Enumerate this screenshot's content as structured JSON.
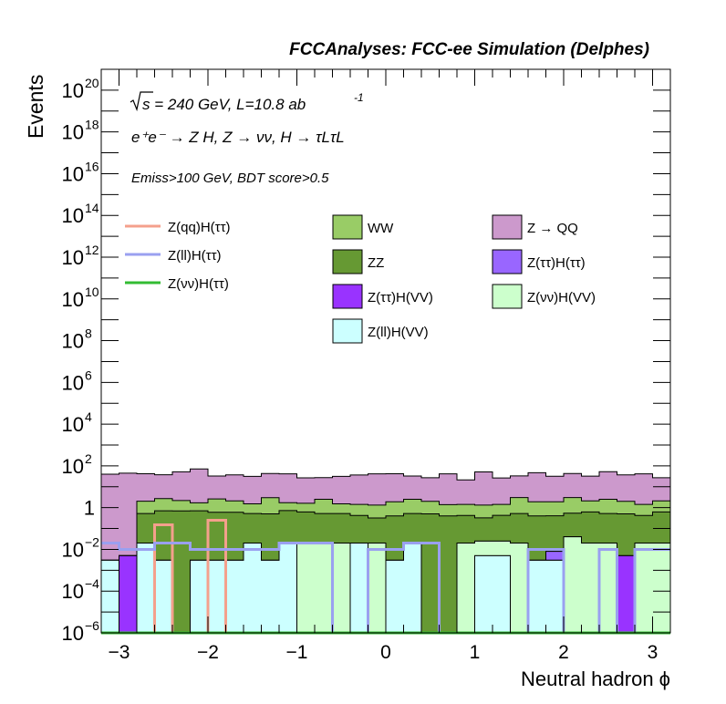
{
  "header": {
    "title": "FCCAnalyses: FCC-ee Simulation (Delphes)"
  },
  "annotations": {
    "energy_prefix": "s = 240 GeV, L=10.8 ab",
    "energy_sup": "-1",
    "process": "e⁺e⁻ → Z H, Z → νν, H → τLτL",
    "cuts": "Emiss>100 GeV, BDT score>0.5"
  },
  "axes": {
    "ylabel": "Events",
    "xlabel": "Neutral hadron ϕ"
  },
  "legend": {
    "lines": [
      {
        "label": "Z(qq)H(ττ)",
        "color": "#f4a08c"
      },
      {
        "label": "Z(ll)H(ττ)",
        "color": "#9aa0f0"
      },
      {
        "label": "Z(νν)H(ττ)",
        "color": "#33bb33"
      }
    ],
    "fills": [
      {
        "label": "WW",
        "color": "#99cc66"
      },
      {
        "label": "Z → QQ",
        "color": "#cc99cc"
      },
      {
        "label": "ZZ",
        "color": "#669933"
      },
      {
        "label": "Z(ττ)H(ττ)",
        "color": "#9966ff"
      },
      {
        "label": "Z(ττ)H(VV)",
        "color": "#9933ff"
      },
      {
        "label": "Z(νν)H(VV)",
        "color": "#ccffcc"
      },
      {
        "label": "Z(ll)H(VV)",
        "color": "#ccffff"
      }
    ]
  },
  "chart_data": {
    "type": "bar",
    "stacked": true,
    "yscale": "log",
    "xlim": [
      -3.2,
      3.2
    ],
    "ylim": [
      1e-06,
      1e+21
    ],
    "xticks": [
      -3,
      -2,
      -1,
      0,
      1,
      2,
      3
    ],
    "xtick_labels": [
      "−3",
      "−2",
      "−1",
      "0",
      "1",
      "2",
      "3"
    ],
    "yticks": [
      1e-06,
      0.0001,
      0.01,
      1,
      100.0,
      10000.0,
      1000000.0,
      100000000.0,
      10000000000.0,
      1000000000000.0,
      100000000000000.0,
      1e+16,
      1e+18,
      1e+20
    ],
    "ytick_labels": [
      {
        "base": "10",
        "exp": "−6"
      },
      {
        "base": "10",
        "exp": "−4"
      },
      {
        "base": "10",
        "exp": "−2"
      },
      {
        "base": "1",
        "exp": ""
      },
      {
        "base": "10",
        "exp": "2"
      },
      {
        "base": "10",
        "exp": "4"
      },
      {
        "base": "10",
        "exp": "6"
      },
      {
        "base": "10",
        "exp": "8"
      },
      {
        "base": "10",
        "exp": "10"
      },
      {
        "base": "10",
        "exp": "12"
      },
      {
        "base": "10",
        "exp": "14"
      },
      {
        "base": "10",
        "exp": "16"
      },
      {
        "base": "10",
        "exp": "18"
      },
      {
        "base": "10",
        "exp": "20"
      }
    ],
    "bin_edges": [
      -3.2,
      -3.0,
      -2.8,
      -2.6,
      -2.4,
      -2.2,
      -2.0,
      -1.8,
      -1.6,
      -1.4,
      -1.2,
      -1.0,
      -0.8,
      -0.6,
      -0.4,
      -0.2,
      0.0,
      0.2,
      0.4,
      0.6,
      0.8,
      1.0,
      1.2,
      1.4,
      1.6,
      1.8,
      2.0,
      2.2,
      2.4,
      2.6,
      2.8,
      3.0,
      3.2
    ],
    "stack_order": [
      "Z(ll)H(VV)",
      "Z(ττ)H(VV)",
      "Z(νν)H(VV)",
      "Z(ττ)H(ττ)",
      "ZZ",
      "WW",
      "Z → QQ"
    ],
    "stack": {
      "Z(ll)H(VV)": [
        0.003,
        0,
        0.02,
        0.003,
        0,
        0.003,
        0.003,
        0.003,
        0.02,
        0.003,
        0.02,
        0,
        0,
        0,
        0.02,
        0,
        0.003,
        0.02,
        0,
        0,
        0,
        0.005,
        0.005,
        0,
        0.003,
        0.003,
        0,
        0,
        0,
        0,
        0,
        0
      ],
      "Z(ττ)H(VV)": [
        0,
        0.005,
        0,
        0,
        0,
        0,
        0,
        0,
        0,
        0,
        0,
        0,
        0,
        0,
        0,
        0,
        0,
        0,
        0,
        0,
        0,
        0,
        0,
        0,
        0,
        0,
        0,
        0,
        0,
        0.005,
        0,
        0
      ],
      "Z(νν)H(VV)": [
        0,
        0,
        0,
        0,
        0,
        0,
        0,
        0,
        0,
        0,
        0,
        0.02,
        0.02,
        0.02,
        0,
        0.02,
        0,
        0,
        0,
        0,
        0.02,
        0.02,
        0.02,
        0.02,
        0,
        0,
        0.04,
        0.02,
        0.02,
        0,
        0.02,
        0.02
      ],
      "Z(ττ)H(ττ)": [
        0,
        0,
        0,
        0,
        0,
        0,
        0,
        0,
        0,
        0,
        0,
        0,
        0,
        0,
        0,
        0,
        0,
        0,
        0,
        0,
        0,
        0,
        0,
        0,
        0,
        0.005,
        0,
        0,
        0,
        0,
        0,
        0
      ],
      "ZZ": [
        0,
        0,
        0.5,
        0.7,
        0.7,
        0.7,
        0.6,
        0.6,
        0.5,
        0.5,
        0.7,
        0.6,
        0.5,
        0.5,
        0.4,
        0.3,
        0.4,
        0.5,
        0.5,
        0.4,
        0.4,
        0.3,
        0.4,
        0.5,
        0.4,
        0.4,
        0.5,
        0.6,
        0.5,
        0.5,
        0.4,
        0.6
      ],
      "WW": [
        0,
        0,
        1.5,
        2,
        1.5,
        1,
        2,
        1.5,
        1,
        2.5,
        1,
        1,
        2,
        1,
        1,
        1,
        1.5,
        2,
        1.5,
        1,
        1,
        1,
        1,
        2.5,
        1.5,
        1.5,
        2.5,
        1.5,
        2,
        1.5,
        1,
        1.5
      ],
      "Z → QQ": [
        40,
        45,
        40,
        35,
        50,
        70,
        30,
        35,
        30,
        40,
        40,
        25,
        25,
        30,
        35,
        40,
        40,
        30,
        25,
        40,
        20,
        50,
        25,
        30,
        45,
        30,
        40,
        30,
        50,
        35,
        40,
        25
      ]
    },
    "lines": {
      "Z(qq)H(ττ)": [
        0,
        0,
        0,
        0.15,
        0,
        0,
        0.25,
        0,
        0,
        0,
        0,
        0,
        0,
        0,
        0,
        0,
        0,
        0,
        0,
        0,
        0,
        0,
        0,
        0,
        0,
        0,
        0,
        0,
        0,
        0,
        0,
        0
      ],
      "Z(ll)H(ττ)": [
        0.02,
        0.01,
        0.01,
        0.02,
        0.02,
        0.01,
        0.01,
        0.01,
        0.01,
        0.01,
        0.02,
        0.02,
        0.02,
        0,
        0,
        0.01,
        0.01,
        0.02,
        0.02,
        0,
        0,
        0,
        0,
        0,
        0.01,
        0.01,
        0,
        0,
        0.01,
        0,
        0.01,
        0.01
      ],
      "Z(νν)H(ττ)": [
        0,
        0,
        0,
        0,
        0,
        0,
        0,
        0,
        0,
        0,
        0,
        0,
        0,
        0,
        0,
        0,
        0,
        0,
        0,
        0,
        0,
        0,
        0,
        0,
        0,
        0,
        0,
        0,
        0,
        0,
        0,
        0
      ]
    }
  }
}
